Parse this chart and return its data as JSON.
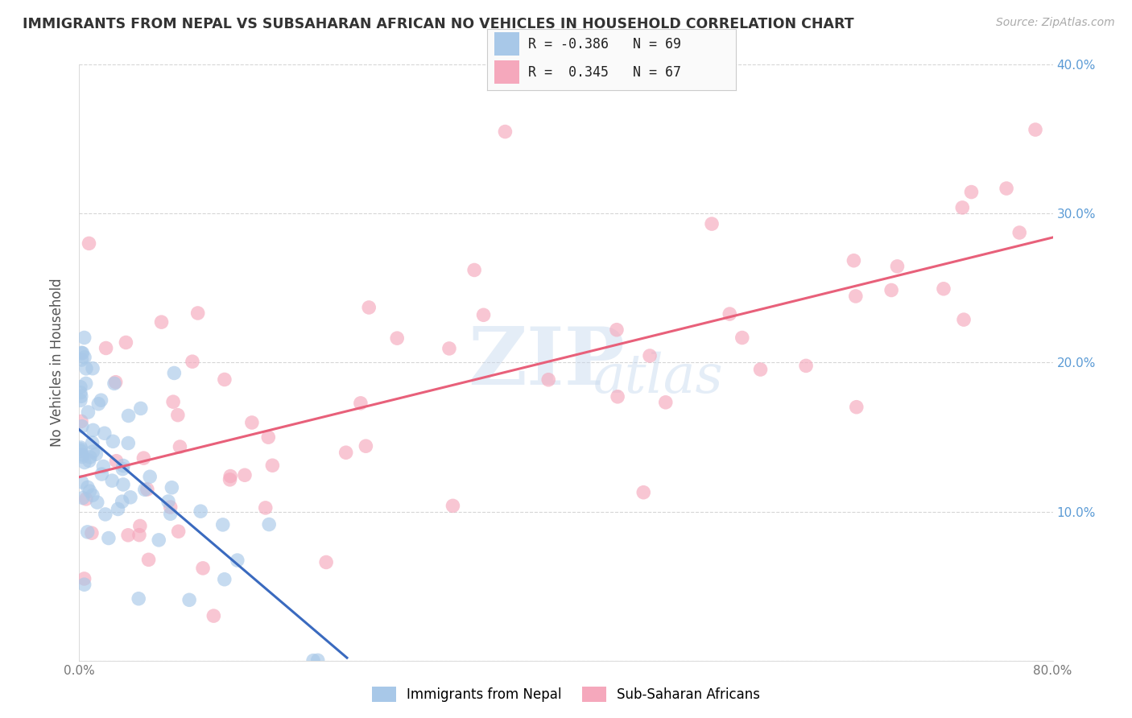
{
  "title": "IMMIGRANTS FROM NEPAL VS SUBSAHARAN AFRICAN NO VEHICLES IN HOUSEHOLD CORRELATION CHART",
  "source_text": "Source: ZipAtlas.com",
  "ylabel": "No Vehicles in Household",
  "xlim": [
    0,
    0.8
  ],
  "ylim": [
    0,
    0.4
  ],
  "nepal_R": -0.386,
  "nepal_N": 69,
  "subsaharan_R": 0.345,
  "subsaharan_N": 67,
  "nepal_color": "#a8c8e8",
  "subsaharan_color": "#f5a8bc",
  "nepal_line_color": "#3a6abf",
  "subsaharan_line_color": "#e8607a",
  "watermark_ZIP": "ZIP",
  "watermark_atlas": "atlas",
  "background_color": "#ffffff",
  "tick_color": "#5b9bd5",
  "nepal_scatter_seed": 42,
  "subsaharan_scatter_seed": 99
}
